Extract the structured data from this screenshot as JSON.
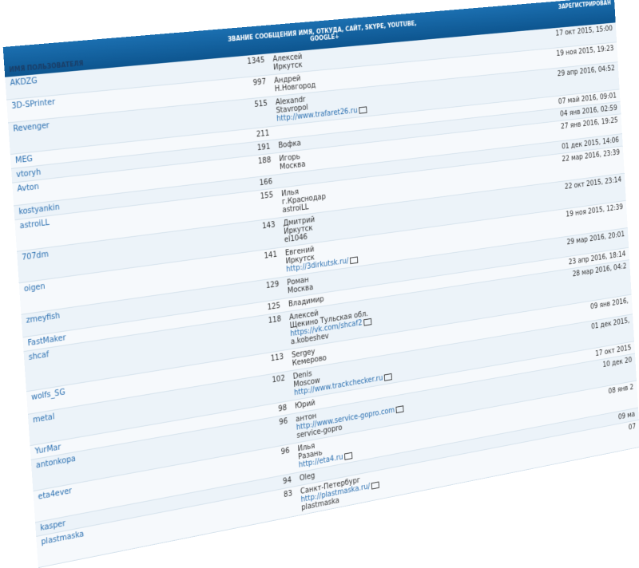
{
  "header": {
    "username": "имя пользователя",
    "info": "звание сообщения имя, откуда, сайт, skype, youtube, google+",
    "registered": "зарегистрирован"
  },
  "rows": [
    {
      "username": "AKDZG",
      "posts": 1345,
      "lines": [
        "Алексей",
        "Иркутск"
      ],
      "registered": "17 окт 2015, 15:00"
    },
    {
      "username": "3D-SPrinter",
      "posts": 997,
      "lines": [
        "Андрей",
        "Н.Новгород"
      ],
      "registered": "19 ноя 2015, 19:23"
    },
    {
      "username": "Revenger",
      "posts": 515,
      "lines": [
        "Alexandr",
        "Stavropol",
        "http://www.trafaret26.ru"
      ],
      "registered": "29 апр 2016, 04:52"
    },
    {
      "username": "MEG",
      "posts": 211,
      "lines": [],
      "registered": "07 май 2016, 09:01"
    },
    {
      "username": "vtoryh",
      "posts": 191,
      "lines": [
        "Вофка"
      ],
      "registered": "04 янв 2016, 02:59"
    },
    {
      "username": "Avton",
      "posts": 188,
      "lines": [
        "Игорь",
        "Москва"
      ],
      "registered": "27 янв 2016, 19:25"
    },
    {
      "username": "kostyankin",
      "posts": 166,
      "lines": [],
      "registered": "01 дек 2015, 14:06"
    },
    {
      "username": "astroiLL",
      "posts": 155,
      "lines": [
        "Илья",
        "г.Краснодар",
        "astroiLL"
      ],
      "registered": "22 мар 2016, 23:39"
    },
    {
      "username": "707dm",
      "posts": 143,
      "lines": [
        "Дмитрий",
        "Иркутск",
        "el1046"
      ],
      "registered": "22 окт 2015, 23:14"
    },
    {
      "username": "oigen",
      "posts": 141,
      "lines": [
        "Евгений",
        "Иркутск",
        "http://3dirkutsk.ru/"
      ],
      "registered": "19 ноя 2015, 12:39"
    },
    {
      "username": "zmeyfish",
      "posts": 129,
      "lines": [
        "Роман",
        "Москва"
      ],
      "registered": "29 мар 2016, 20:01"
    },
    {
      "username": "FastMaker",
      "posts": 125,
      "lines": [
        "Владимир"
      ],
      "registered": "23 апр 2016, 18:14"
    },
    {
      "username": "shcaf",
      "posts": 118,
      "lines": [
        "Алексей",
        "Щекино Тульская обл.",
        "https://vk.com/shcaf2",
        "a.kobeshev"
      ],
      "registered": "28 мар 2016, 04:2"
    },
    {
      "username": "wolfs_SG",
      "posts": 113,
      "lines": [
        "Sergey",
        "Кемерово"
      ],
      "registered": "09 янв 2016,"
    },
    {
      "username": "metal",
      "posts": 102,
      "lines": [
        "Denis",
        "Moscow",
        "http://www.trackchecker.ru"
      ],
      "registered": "01 дек 2015,"
    },
    {
      "username": "YurMar",
      "posts": 98,
      "lines": [
        "Юрий"
      ],
      "registered": "17 окт 2015"
    },
    {
      "username": "antonkopa",
      "posts": 96,
      "lines": [
        "антон",
        "http://www.service-gopro.com",
        "service-gopro"
      ],
      "registered": "10 дек 20"
    },
    {
      "username": "eta4ever",
      "posts": 96,
      "lines": [
        "Илья",
        "Разань",
        "http://eta4.ru"
      ],
      "registered": "08 янв 2"
    },
    {
      "username": "kasper",
      "posts": 94,
      "lines": [
        "Oleg"
      ],
      "registered": "09 ма"
    },
    {
      "username": "plastmaska",
      "posts": 83,
      "lines": [
        "Санкт-Петербург",
        "http://plastmaska.ru/",
        "plastmaska"
      ],
      "registered": "07"
    }
  ]
}
